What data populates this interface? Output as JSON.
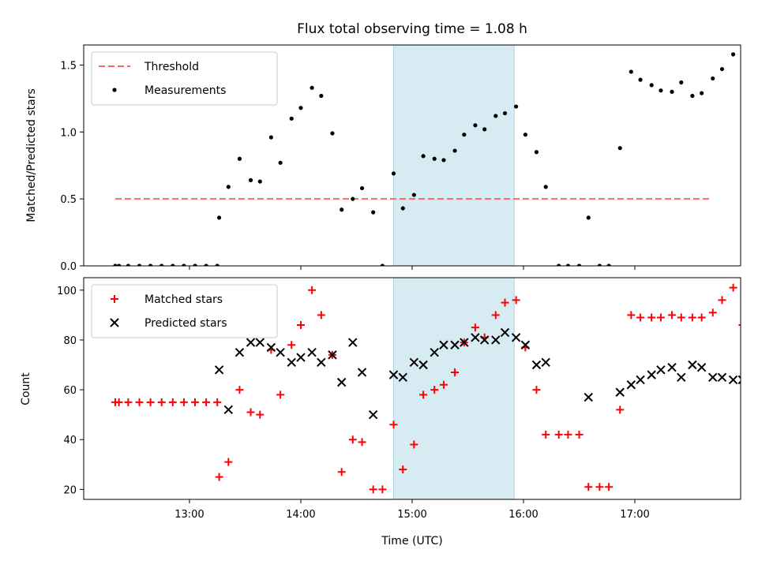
{
  "chart_data": [
    {
      "type": "scatter",
      "title": "Flux total observing time = 1.08 h",
      "ylabel": "Matched/Predicted stars",
      "xlabel": "",
      "x_unit": "hours UTC",
      "xlim": [
        12.05,
        17.95
      ],
      "ylim": [
        0,
        1.65
      ],
      "yticks": [
        0,
        0.5,
        1.0,
        1.5
      ],
      "ytick_labels": [
        "0.0",
        "0.5",
        "1.0",
        "1.5"
      ],
      "shaded_interval": {
        "x_start": "14:50",
        "x_end": "15:55",
        "color": "#add8e6"
      },
      "legend": {
        "placement": "top-left"
      },
      "series": [
        {
          "name": "Threshold",
          "kind": "dashed-line",
          "color": "#ff6666",
          "x": [
            "12:20",
            "17:40"
          ],
          "y": [
            0.5,
            0.5
          ]
        },
        {
          "name": "Measurements",
          "kind": "dots",
          "color": "#000000",
          "points": [
            [
              "12:20",
              0
            ],
            [
              "12:22",
              0
            ],
            [
              "12:27",
              0
            ],
            [
              "12:33",
              0
            ],
            [
              "12:39",
              0
            ],
            [
              "12:45",
              0
            ],
            [
              "12:51",
              0
            ],
            [
              "12:57",
              0
            ],
            [
              "13:03",
              0
            ],
            [
              "13:09",
              0
            ],
            [
              "13:15",
              0
            ],
            [
              "13:16",
              0.36
            ],
            [
              "13:21",
              0.59
            ],
            [
              "13:27",
              0.8
            ],
            [
              "13:33",
              0.64
            ],
            [
              "13:38",
              0.63
            ],
            [
              "13:44",
              0.96
            ],
            [
              "13:49",
              0.77
            ],
            [
              "13:55",
              1.1
            ],
            [
              "14:00",
              1.18
            ],
            [
              "14:06",
              1.33
            ],
            [
              "14:11",
              1.27
            ],
            [
              "14:17",
              0.99
            ],
            [
              "14:22",
              0.42
            ],
            [
              "14:28",
              0.5
            ],
            [
              "14:33",
              0.58
            ],
            [
              "14:39",
              0.4
            ],
            [
              "14:44",
              0
            ],
            [
              "14:50",
              0.69
            ],
            [
              "14:55",
              0.43
            ],
            [
              "15:01",
              0.53
            ],
            [
              "15:06",
              0.82
            ],
            [
              "15:12",
              0.8
            ],
            [
              "15:17",
              0.79
            ],
            [
              "15:23",
              0.86
            ],
            [
              "15:28",
              0.98
            ],
            [
              "15:34",
              1.05
            ],
            [
              "15:39",
              1.02
            ],
            [
              "15:45",
              1.12
            ],
            [
              "15:50",
              1.14
            ],
            [
              "15:56",
              1.19
            ],
            [
              "16:01",
              0.98
            ],
            [
              "16:07",
              0.85
            ],
            [
              "16:12",
              0.59
            ],
            [
              "16:19",
              0
            ],
            [
              "16:24",
              0
            ],
            [
              "16:30",
              0
            ],
            [
              "16:35",
              0.36
            ],
            [
              "16:41",
              0
            ],
            [
              "16:46",
              0
            ],
            [
              "16:52",
              0.88
            ],
            [
              "16:58",
              1.45
            ],
            [
              "17:03",
              1.39
            ],
            [
              "17:09",
              1.35
            ],
            [
              "17:14",
              1.31
            ],
            [
              "17:20",
              1.3
            ],
            [
              "17:25",
              1.37
            ],
            [
              "17:31",
              1.27
            ],
            [
              "17:36",
              1.29
            ],
            [
              "17:42",
              1.4
            ],
            [
              "17:47",
              1.47
            ],
            [
              "17:53",
              1.58
            ],
            [
              "17:58",
              1.34
            ],
            [
              "18:03",
              1.33
            ],
            [
              "18:09",
              0.88
            ]
          ]
        }
      ]
    },
    {
      "type": "scatter",
      "title": "",
      "ylabel": "Count",
      "xlabel": "Time (UTC)",
      "x_unit": "hours UTC",
      "xlim": [
        12.05,
        17.95
      ],
      "ylim": [
        16,
        105
      ],
      "yticks": [
        20,
        40,
        60,
        80,
        100
      ],
      "ytick_labels": [
        "20",
        "40",
        "60",
        "80",
        "100"
      ],
      "xticks": [
        "13:00",
        "14:00",
        "15:00",
        "16:00",
        "17:00"
      ],
      "shaded_interval": {
        "x_start": "14:50",
        "x_end": "15:55",
        "color": "#add8e6"
      },
      "legend": {
        "placement": "top-left"
      },
      "series": [
        {
          "name": "Matched stars",
          "kind": "plus",
          "color": "#ff0000",
          "points": [
            [
              "12:20",
              55
            ],
            [
              "12:22",
              55
            ],
            [
              "12:27",
              55
            ],
            [
              "12:33",
              55
            ],
            [
              "12:39",
              55
            ],
            [
              "12:45",
              55
            ],
            [
              "12:51",
              55
            ],
            [
              "12:57",
              55
            ],
            [
              "13:03",
              55
            ],
            [
              "13:09",
              55
            ],
            [
              "13:15",
              55
            ],
            [
              "13:16",
              25
            ],
            [
              "13:21",
              31
            ],
            [
              "13:27",
              60
            ],
            [
              "13:33",
              51
            ],
            [
              "13:38",
              50
            ],
            [
              "13:44",
              76
            ],
            [
              "13:49",
              58
            ],
            [
              "13:55",
              78
            ],
            [
              "14:00",
              86
            ],
            [
              "14:06",
              100
            ],
            [
              "14:11",
              90
            ],
            [
              "14:17",
              74
            ],
            [
              "14:22",
              27
            ],
            [
              "14:28",
              40
            ],
            [
              "14:33",
              39
            ],
            [
              "14:39",
              20
            ],
            [
              "14:44",
              20
            ],
            [
              "14:50",
              46
            ],
            [
              "14:55",
              28
            ],
            [
              "15:01",
              38
            ],
            [
              "15:06",
              58
            ],
            [
              "15:12",
              60
            ],
            [
              "15:17",
              62
            ],
            [
              "15:23",
              67
            ],
            [
              "15:28",
              79
            ],
            [
              "15:34",
              85
            ],
            [
              "15:39",
              81
            ],
            [
              "15:45",
              90
            ],
            [
              "15:50",
              95
            ],
            [
              "15:56",
              96
            ],
            [
              "16:01",
              77
            ],
            [
              "16:07",
              60
            ],
            [
              "16:12",
              42
            ],
            [
              "16:19",
              42
            ],
            [
              "16:24",
              42
            ],
            [
              "16:30",
              42
            ],
            [
              "16:35",
              21
            ],
            [
              "16:41",
              21
            ],
            [
              "16:46",
              21
            ],
            [
              "16:52",
              52
            ],
            [
              "16:58",
              90
            ],
            [
              "17:03",
              89
            ],
            [
              "17:09",
              89
            ],
            [
              "17:14",
              89
            ],
            [
              "17:20",
              90
            ],
            [
              "17:25",
              89
            ],
            [
              "17:31",
              89
            ],
            [
              "17:36",
              89
            ],
            [
              "17:42",
              91
            ],
            [
              "17:47",
              96
            ],
            [
              "17:53",
              101
            ],
            [
              "17:58",
              86
            ],
            [
              "18:03",
              53
            ],
            [
              "18:09",
              22
            ]
          ]
        },
        {
          "name": "Predicted stars",
          "kind": "x",
          "color": "#000000",
          "points": [
            [
              "13:16",
              68
            ],
            [
              "13:21",
              52
            ],
            [
              "13:27",
              75
            ],
            [
              "13:33",
              79
            ],
            [
              "13:38",
              79
            ],
            [
              "13:44",
              77
            ],
            [
              "13:49",
              75
            ],
            [
              "13:55",
              71
            ],
            [
              "14:00",
              73
            ],
            [
              "14:06",
              75
            ],
            [
              "14:11",
              71
            ],
            [
              "14:17",
              74
            ],
            [
              "14:22",
              63
            ],
            [
              "14:28",
              79
            ],
            [
              "14:33",
              67
            ],
            [
              "14:39",
              50
            ],
            [
              "14:50",
              66
            ],
            [
              "14:55",
              65
            ],
            [
              "15:01",
              71
            ],
            [
              "15:06",
              70
            ],
            [
              "15:12",
              75
            ],
            [
              "15:17",
              78
            ],
            [
              "15:23",
              78
            ],
            [
              "15:28",
              79
            ],
            [
              "15:34",
              81
            ],
            [
              "15:39",
              80
            ],
            [
              "15:45",
              80
            ],
            [
              "15:50",
              83
            ],
            [
              "15:56",
              81
            ],
            [
              "16:01",
              78
            ],
            [
              "16:07",
              70
            ],
            [
              "16:12",
              71
            ],
            [
              "16:35",
              57
            ],
            [
              "16:52",
              59
            ],
            [
              "16:58",
              62
            ],
            [
              "17:03",
              64
            ],
            [
              "17:09",
              66
            ],
            [
              "17:14",
              68
            ],
            [
              "17:20",
              69
            ],
            [
              "17:25",
              65
            ],
            [
              "17:31",
              70
            ],
            [
              "17:36",
              69
            ],
            [
              "17:42",
              65
            ],
            [
              "17:47",
              65
            ],
            [
              "17:53",
              64
            ],
            [
              "17:58",
              64
            ],
            [
              "18:03",
              40
            ],
            [
              "18:09",
              25
            ]
          ]
        }
      ]
    }
  ]
}
